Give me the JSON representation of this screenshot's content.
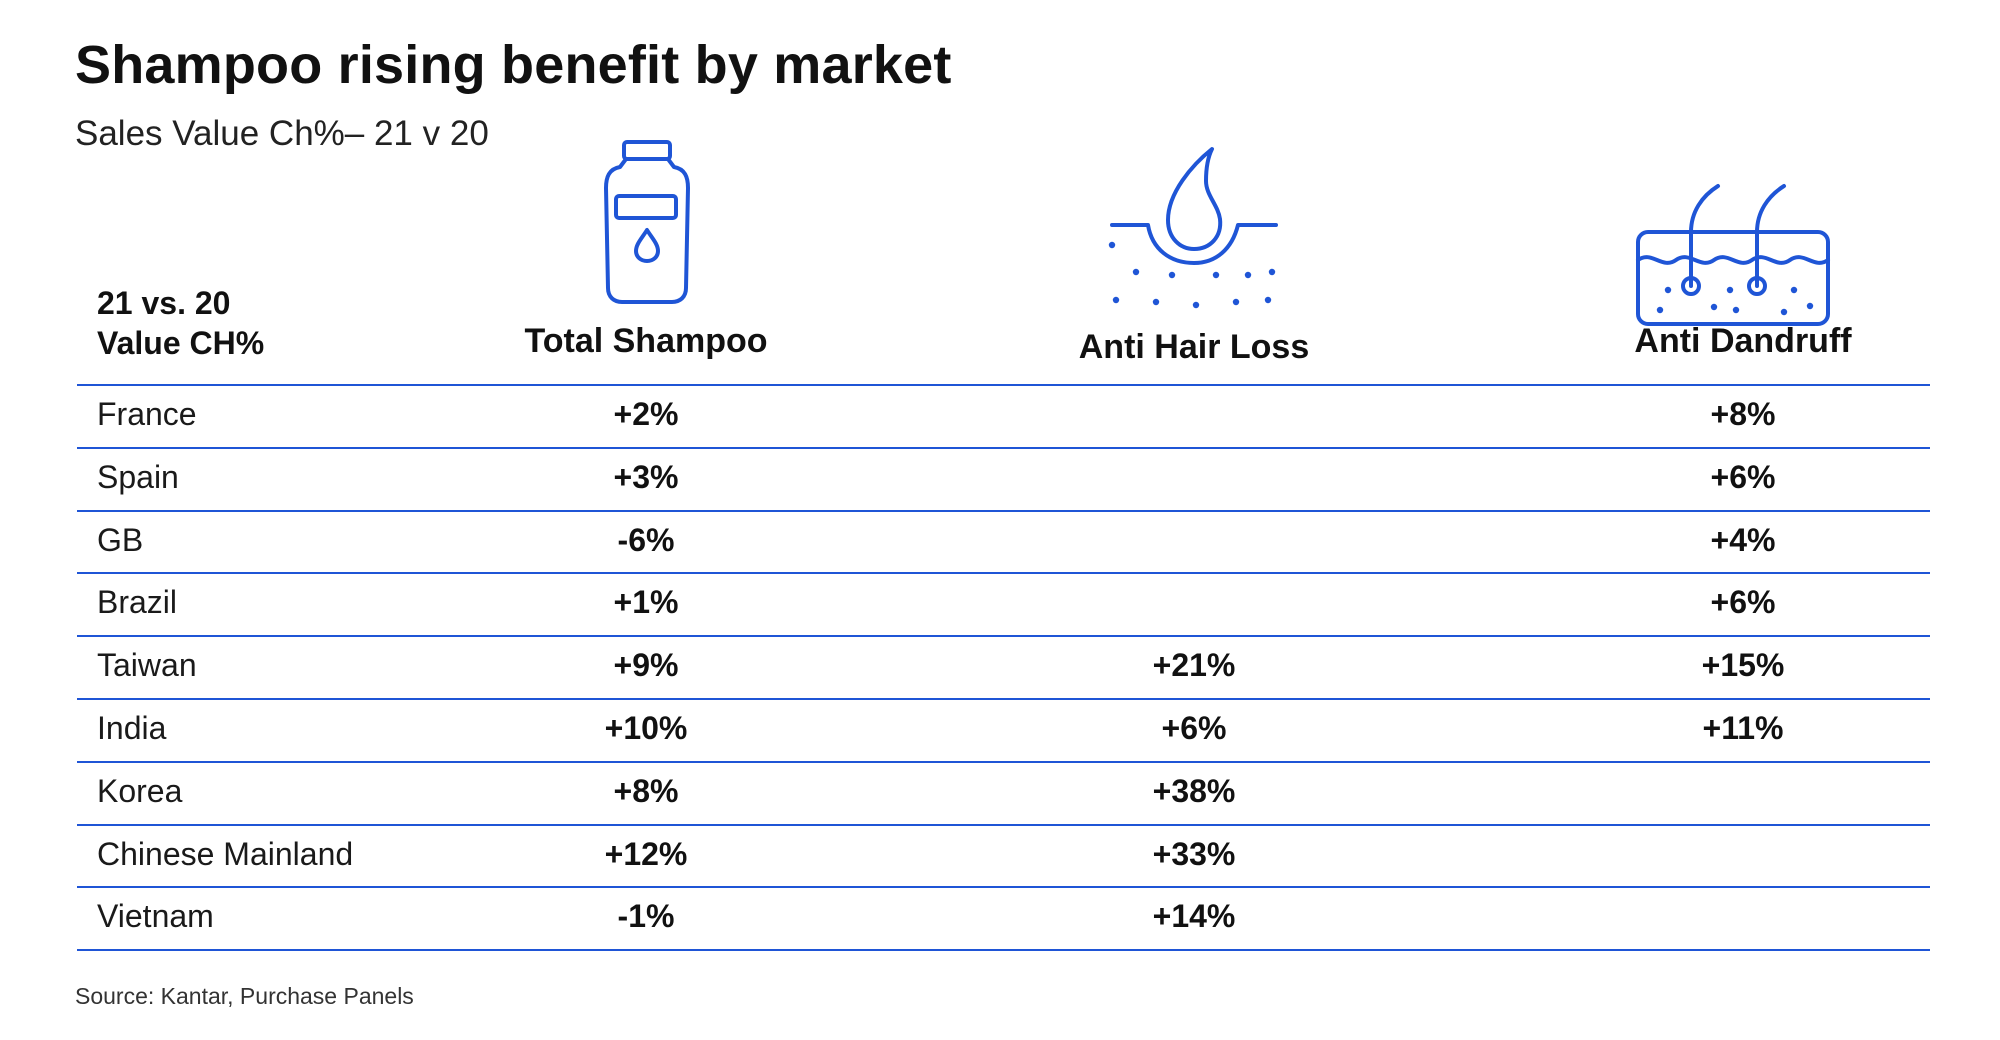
{
  "title": "Shampoo rising benefit by market",
  "subtitle": "Sales Value Ch%– 21 v 20",
  "row_header": {
    "line1": "21 vs. 20",
    "line2": "Value CH%"
  },
  "icons": {
    "total_shampoo": "shampoo-bottle-icon",
    "anti_hair_loss": "scalp-droplet-icon",
    "anti_dandruff": "hair-follicle-icon"
  },
  "colors": {
    "accent": "#1f55d6",
    "text": "#111111"
  },
  "source": "Source: Kantar, Purchase Panels",
  "chart_data": {
    "type": "table",
    "title": "Shampoo rising benefit by market",
    "subtitle": "Sales Value Ch%– 21 v 20",
    "columns": [
      "Total Shampoo",
      "Anti Hair Loss",
      "Anti Dandruff"
    ],
    "rows": [
      {
        "country": "France",
        "values": [
          "+2%",
          "",
          "+8%"
        ]
      },
      {
        "country": "Spain",
        "values": [
          "+3%",
          "",
          "+6%"
        ]
      },
      {
        "country": "GB",
        "values": [
          "-6%",
          "",
          "+4%"
        ]
      },
      {
        "country": "Brazil",
        "values": [
          "+1%",
          "",
          "+6%"
        ]
      },
      {
        "country": "Taiwan",
        "values": [
          "+9%",
          "+21%",
          "+15%"
        ]
      },
      {
        "country": "India",
        "values": [
          "+10%",
          "+6%",
          "+11%"
        ]
      },
      {
        "country": "Korea",
        "values": [
          "+8%",
          "+38%",
          ""
        ]
      },
      {
        "country": "Chinese Mainland",
        "values": [
          "+12%",
          "+33%",
          ""
        ]
      },
      {
        "country": "Vietnam",
        "values": [
          "-1%",
          "+14%",
          ""
        ]
      }
    ]
  }
}
